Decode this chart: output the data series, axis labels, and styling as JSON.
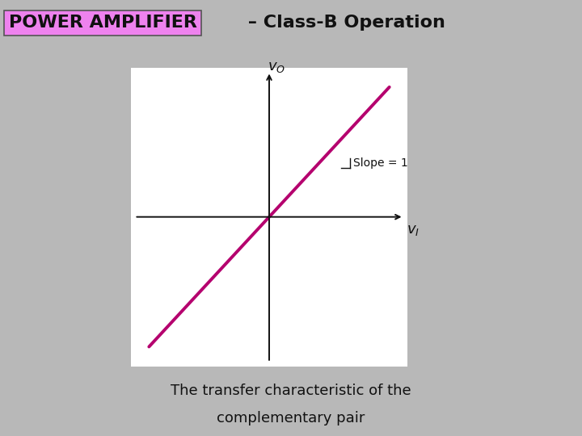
{
  "title_highlight": "POWER AMPLIFIER",
  "title_rest": " – Class-B Operation",
  "title_highlight_bg": "#ee82ee",
  "title_highlight_color": "#111111",
  "title_rest_color": "#111111",
  "background_color": "#b8b8b8",
  "plot_bg": "#ffffff",
  "line_color": "#b5006e",
  "line_width": 2.8,
  "caption_line1": "The transfer characteristic of the",
  "caption_line2": "complementary pair",
  "caption_color": "#111111",
  "vo_label": "$v_O$",
  "vi_label": "$v_I$",
  "slope_label": "Slope = 1",
  "axis_color": "#111111",
  "title_fontsize": 16,
  "caption_fontsize": 13
}
